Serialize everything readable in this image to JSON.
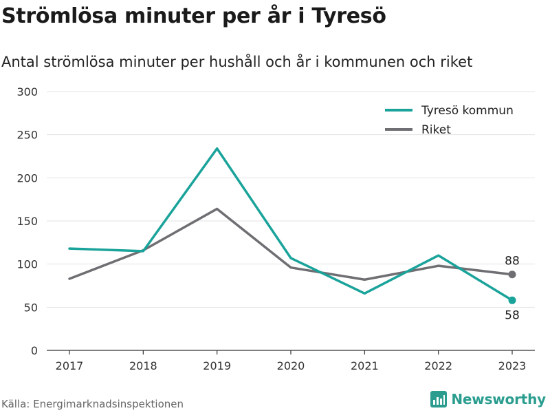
{
  "colors": {
    "tyreso": "#1aa39a",
    "riket": "#6e6e73",
    "brand": "#2a9d8f",
    "grid": "#e3e3e3"
  },
  "brand": {
    "name": "Newsworthy",
    "icon": "bar-chart-icon"
  },
  "source": "Källa: Energimarknadsinspektionen",
  "chart_data": {
    "type": "line",
    "title": "Strömlösa minuter per år i Tyresö",
    "subtitle": "Antal strömlösa minuter per hushåll och år i kommunen och riket",
    "xlabel": "",
    "ylabel": "",
    "x": [
      "2017",
      "2018",
      "2019",
      "2020",
      "2021",
      "2022",
      "2023"
    ],
    "ylim": [
      0,
      300
    ],
    "yticks": [
      "0",
      "50",
      "100",
      "150",
      "200",
      "250",
      "300"
    ],
    "grid": true,
    "legend_position": "top-right",
    "series": [
      {
        "name": "Tyresö kommun",
        "values": [
          118,
          115,
          234,
          107,
          66,
          110,
          58
        ],
        "end_label": "58"
      },
      {
        "name": "Riket",
        "values": [
          83,
          116,
          164,
          96,
          82,
          98,
          88
        ],
        "end_label": "88"
      }
    ]
  }
}
